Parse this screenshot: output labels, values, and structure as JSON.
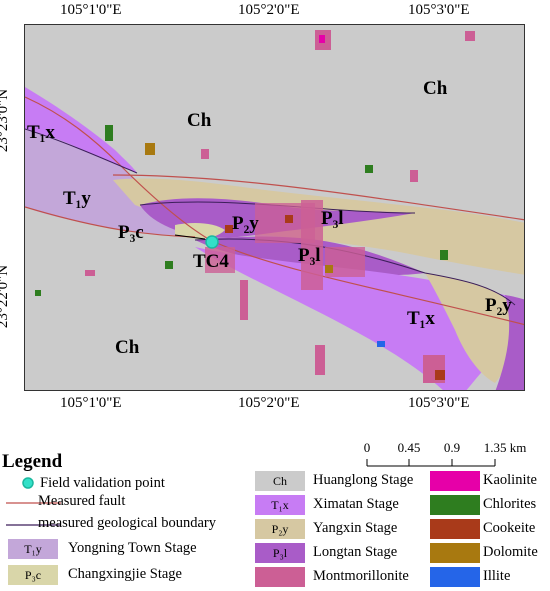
{
  "map": {
    "top_coords": [
      "105°1'0\"E",
      "105°2'0\"E",
      "105°3'0\"E"
    ],
    "bottom_coords": [
      "105°1'0\"E",
      "105°2'0\"E",
      "105°3'0\"E"
    ],
    "left_coords": [
      "23°23'0\"N",
      "23°22'0\"N"
    ],
    "labels": {
      "ch_top_right": "Ch",
      "ch_top_mid": "Ch",
      "ch_bottom_left": "Ch",
      "t1x_left": "T₁x",
      "t1y": "T₁y",
      "p3c": "P₃c",
      "p2y_mid": "P₂y",
      "p3l_top": "P₃l",
      "p3l_mid": "P₃l",
      "tc4": "TC4",
      "t1x_right": "T₁x",
      "p2y_right": "P₂y"
    },
    "colors": {
      "huanglong": "#cbcbcb",
      "ximatan": "#c77cf4",
      "yangxin": "#d6c8a2",
      "longtan": "#a95cc8",
      "yongning": "#c3a7d9",
      "changxingjie": "#d9d6a9",
      "montmorillonite": "#cc5f95",
      "kaolinite": "#e600a8",
      "chlorites": "#2e7d1f",
      "cookeite": "#a93a1a",
      "dolomite": "#a87910",
      "illite": "#2565e8",
      "fault": "#c0504d",
      "boundary": "#3c1f5a",
      "validation_point": "#33e0c8"
    }
  },
  "legend": {
    "title": "Legend",
    "field_validation_point": "Field validation point",
    "measured_fault": "Measured fault",
    "measured_boundary": "measured geological boundary",
    "yongning": {
      "code": "T₁y",
      "name": "Yongning Town Stage"
    },
    "changxingjie": {
      "code": "P₃c",
      "name": "Changxingjie Stage"
    },
    "huanglong": {
      "code": "Ch",
      "name": "Huanglong Stage"
    },
    "ximatan": {
      "code": "T₁x",
      "name": "Ximatan Stage"
    },
    "yangxin": {
      "code": "P₂y",
      "name": "Yangxin Stage"
    },
    "longtan": {
      "code": "P₃l",
      "name": "Longtan Stage"
    },
    "montmorillonite": "Montmorillonite",
    "kaolinite": "Kaolinite",
    "chlorites": "Chlorites",
    "cookeite": "Cookeite",
    "dolomite": "Dolomite",
    "illite": "Illite"
  },
  "scalebar": {
    "ticks": [
      "0",
      "0.45",
      "0.9",
      "1.35 km"
    ]
  }
}
